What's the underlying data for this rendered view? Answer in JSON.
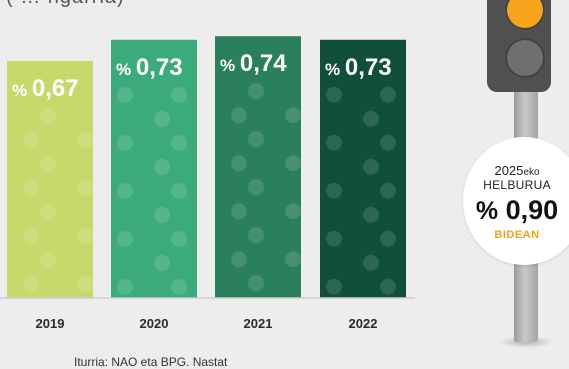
{
  "title_fragment": "( … ngarria)",
  "source_note": "Iturria:  NAO eta BPG. Nastat",
  "goal": {
    "year": "2025",
    "year_suffix": "eko",
    "label": "HELBURUA",
    "percent_sign": "%",
    "value": "0,90",
    "sub": "BIDEAN",
    "color_value": "#111111",
    "color_sub": "#f5a11a"
  },
  "traffic_light": {
    "lamp_on_color": "#f7a51c",
    "lamp_off_color": "#6d6f71",
    "housing_color": "#4e5052"
  },
  "chart_data": {
    "type": "bar",
    "categories": [
      "2019",
      "2020",
      "2021",
      "2022"
    ],
    "values": [
      0.67,
      0.73,
      0.74,
      0.73
    ],
    "value_labels": [
      "0,67",
      "0,73",
      "0,74",
      "0,73"
    ],
    "value_prefix": "%",
    "colors": [
      "#c6da6c",
      "#3cab7c",
      "#2a7f5d",
      "#0f4f3c"
    ],
    "title": "",
    "xlabel": "",
    "ylabel": "",
    "grid": false,
    "legend": "none"
  }
}
